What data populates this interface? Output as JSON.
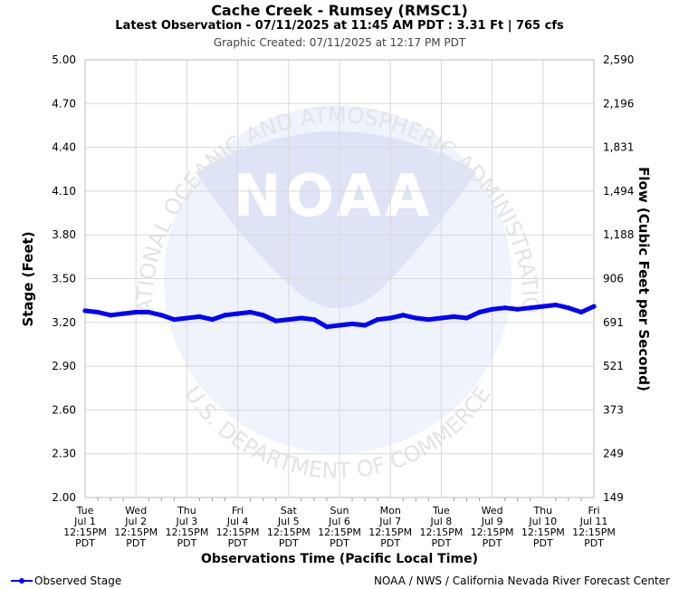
{
  "header": {
    "title": "Cache Creek - Rumsey (RMSC1)",
    "latest": "Latest Observation - 07/11/2025 at 11:45 AM PDT : 3.31 Ft | 765 cfs",
    "created": "Graphic Created: 07/11/2025 at 12:17 PM PDT"
  },
  "watermark": {
    "logo_text": "NOAA",
    "top_text": "NATIONAL OCEANIC AND ATMOSPHERIC ADMINISTRATION",
    "bottom_text": "U.S. DEPARTMENT OF COMMERCE"
  },
  "legend": {
    "label": "Observed Stage"
  },
  "credit": "NOAA / NWS / California Nevada River Forecast Center",
  "chart_data": {
    "type": "line",
    "xlabel": "Observations Time (Pacific Local Time)",
    "ylabel": "Stage (Feet)",
    "y2label": "Flow (Cubic Feet per Second)",
    "ylim": [
      2.0,
      5.0
    ],
    "y_ticks": [
      "2.00",
      "2.30",
      "2.60",
      "2.90",
      "3.20",
      "3.50",
      "3.80",
      "4.10",
      "4.40",
      "4.70",
      "5.00"
    ],
    "y2_ticks": [
      "149",
      "249",
      "373",
      "521",
      "691",
      "906",
      "1,188",
      "1,494",
      "1,831",
      "2,196",
      "2,590"
    ],
    "x_ticks": [
      [
        "Tue",
        "Jul 1",
        "12:15PM",
        "PDT"
      ],
      [
        "Wed",
        "Jul 2",
        "12:15PM",
        "PDT"
      ],
      [
        "Thu",
        "Jul 3",
        "12:15PM",
        "PDT"
      ],
      [
        "Fri",
        "Jul 4",
        "12:15PM",
        "PDT"
      ],
      [
        "Sat",
        "Jul 5",
        "12:15PM",
        "PDT"
      ],
      [
        "Sun",
        "Jul 6",
        "12:15PM",
        "PDT"
      ],
      [
        "Mon",
        "Jul 7",
        "12:15PM",
        "PDT"
      ],
      [
        "Tue",
        "Jul 8",
        "12:15PM",
        "PDT"
      ],
      [
        "Wed",
        "Jul 9",
        "12:15PM",
        "PDT"
      ],
      [
        "Thu",
        "Jul 10",
        "12:15PM",
        "PDT"
      ],
      [
        "Fri",
        "Jul 11",
        "12:15PM",
        "PDT"
      ]
    ],
    "grid": true,
    "legend_position": "bottom-left",
    "series": [
      {
        "name": "Observed Stage",
        "color": "#0000ff",
        "x": [
          0,
          0.25,
          0.5,
          0.75,
          1.0,
          1.25,
          1.5,
          1.75,
          2.0,
          2.25,
          2.5,
          2.75,
          3.0,
          3.25,
          3.5,
          3.75,
          4.0,
          4.25,
          4.5,
          4.75,
          5.0,
          5.25,
          5.5,
          5.75,
          6.0,
          6.25,
          6.5,
          6.75,
          7.0,
          7.25,
          7.5,
          7.75,
          8.0,
          8.25,
          8.5,
          8.75,
          9.0,
          9.25,
          9.5,
          9.75,
          10.0
        ],
        "values": [
          3.28,
          3.27,
          3.25,
          3.26,
          3.27,
          3.27,
          3.25,
          3.22,
          3.23,
          3.24,
          3.22,
          3.25,
          3.26,
          3.27,
          3.25,
          3.21,
          3.22,
          3.23,
          3.22,
          3.17,
          3.18,
          3.19,
          3.18,
          3.22,
          3.23,
          3.25,
          3.23,
          3.22,
          3.23,
          3.24,
          3.23,
          3.27,
          3.29,
          3.3,
          3.29,
          3.3,
          3.31,
          3.32,
          3.3,
          3.27,
          3.31
        ]
      }
    ]
  }
}
